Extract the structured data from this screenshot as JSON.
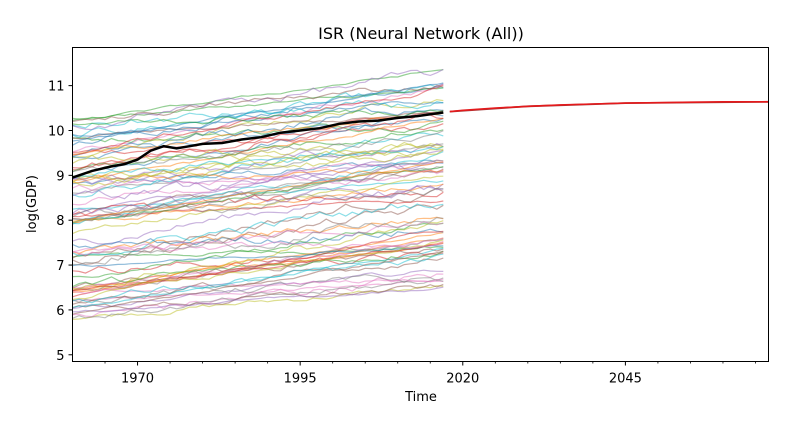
{
  "chart_data": {
    "type": "line",
    "title": "ISR (Neural Network (All))",
    "xlabel": "Time",
    "ylabel": "log(GDP)",
    "xlim": [
      1960,
      2067
    ],
    "ylim": [
      4.85,
      11.85
    ],
    "x_ticks": [
      1970,
      1995,
      2020,
      2045
    ],
    "y_ticks": [
      5,
      6,
      7,
      8,
      9,
      10,
      11
    ],
    "grid": false,
    "legend": "none",
    "background_series_count": 90,
    "background_years": [
      1960,
      2017
    ],
    "background_start_range": [
      5.8,
      10.3
    ],
    "background_end_range": [
      6.5,
      11.35
    ],
    "series": [
      {
        "role": "target-history",
        "color": "#000000",
        "x": [
          1960,
          1963,
          1966,
          1968,
          1970,
          1972,
          1974,
          1976,
          1978,
          1980,
          1983,
          1986,
          1989,
          1992,
          1995,
          1998,
          2001,
          2004,
          2007,
          2010,
          2013,
          2016,
          2017
        ],
        "y": [
          8.95,
          9.1,
          9.2,
          9.25,
          9.35,
          9.55,
          9.65,
          9.6,
          9.65,
          9.7,
          9.72,
          9.8,
          9.85,
          9.95,
          10.0,
          10.05,
          10.15,
          10.2,
          10.22,
          10.28,
          10.32,
          10.38,
          10.4
        ]
      },
      {
        "role": "forecast",
        "color": "#e41a1c",
        "x": [
          2018,
          2020,
          2025,
          2030,
          2035,
          2040,
          2045,
          2050,
          2055,
          2060,
          2067
        ],
        "y": [
          10.42,
          10.45,
          10.5,
          10.54,
          10.57,
          10.59,
          10.61,
          10.62,
          10.63,
          10.64,
          10.64
        ]
      },
      {
        "role": "forecast-band",
        "color": "#8b1a1a",
        "x": [
          2018,
          2030,
          2045,
          2067
        ],
        "y_low": [
          10.4,
          10.52,
          10.59,
          10.62
        ],
        "y_high": [
          10.44,
          10.56,
          10.63,
          10.66
        ]
      }
    ]
  },
  "colors": [
    "#1f77b4",
    "#ff7f0e",
    "#2ca02c",
    "#d62728",
    "#9467bd",
    "#8c564b",
    "#e377c2",
    "#7f7f7f",
    "#bcbd22",
    "#17becf"
  ]
}
